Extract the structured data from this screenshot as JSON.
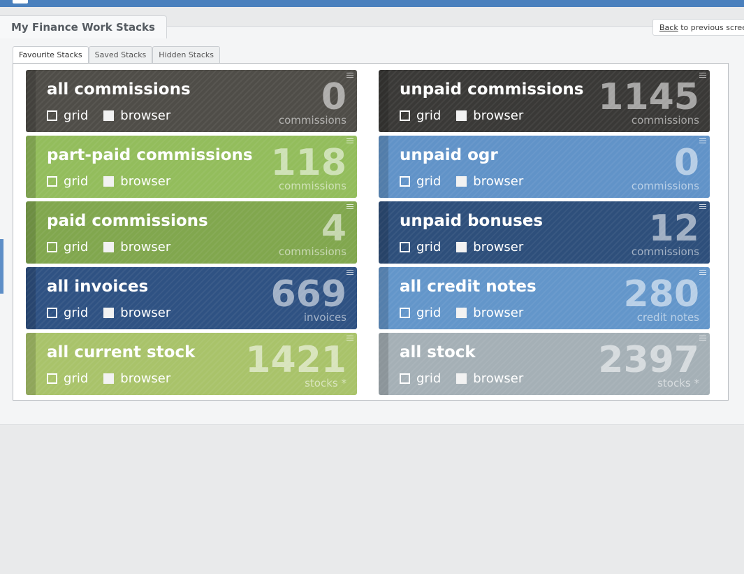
{
  "header": {
    "title": "My Finance Work Stacks",
    "back_link": "Back",
    "back_suffix": " to previous screen"
  },
  "tabs": [
    {
      "label": "Favourite Stacks",
      "active": true
    },
    {
      "label": "Saved Stacks",
      "active": false
    },
    {
      "label": "Hidden Stacks",
      "active": false
    }
  ],
  "option_labels": {
    "grid": "grid",
    "browser": "browser"
  },
  "tiles": [
    {
      "title": "all commissions",
      "count": "0",
      "unit": "commissions",
      "color": "#4f4d48"
    },
    {
      "title": "unpaid commissions",
      "count": "1145",
      "unit": "commissions",
      "color": "#3a3937"
    },
    {
      "title": "part-paid commissions",
      "count": "118",
      "unit": "commissions",
      "color": "#93bd5c"
    },
    {
      "title": "unpaid ogr",
      "count": "0",
      "unit": "commissions",
      "color": "#6193c8"
    },
    {
      "title": "paid commissions",
      "count": "4",
      "unit": "commissions",
      "color": "#81a74e"
    },
    {
      "title": "unpaid bonuses",
      "count": "12",
      "unit": "commissions",
      "color": "#2e4f7b"
    },
    {
      "title": "all invoices",
      "count": "669",
      "unit": "invoices",
      "color": "#2f5283"
    },
    {
      "title": "all credit notes",
      "count": "280",
      "unit": "credit notes",
      "color": "#6396ca"
    },
    {
      "title": "all current stock",
      "count": "1421",
      "unit": "stocks *",
      "color": "#a9c36a"
    },
    {
      "title": "all stock",
      "count": "2397",
      "unit": "stocks *",
      "color": "#a5b0b6"
    }
  ]
}
